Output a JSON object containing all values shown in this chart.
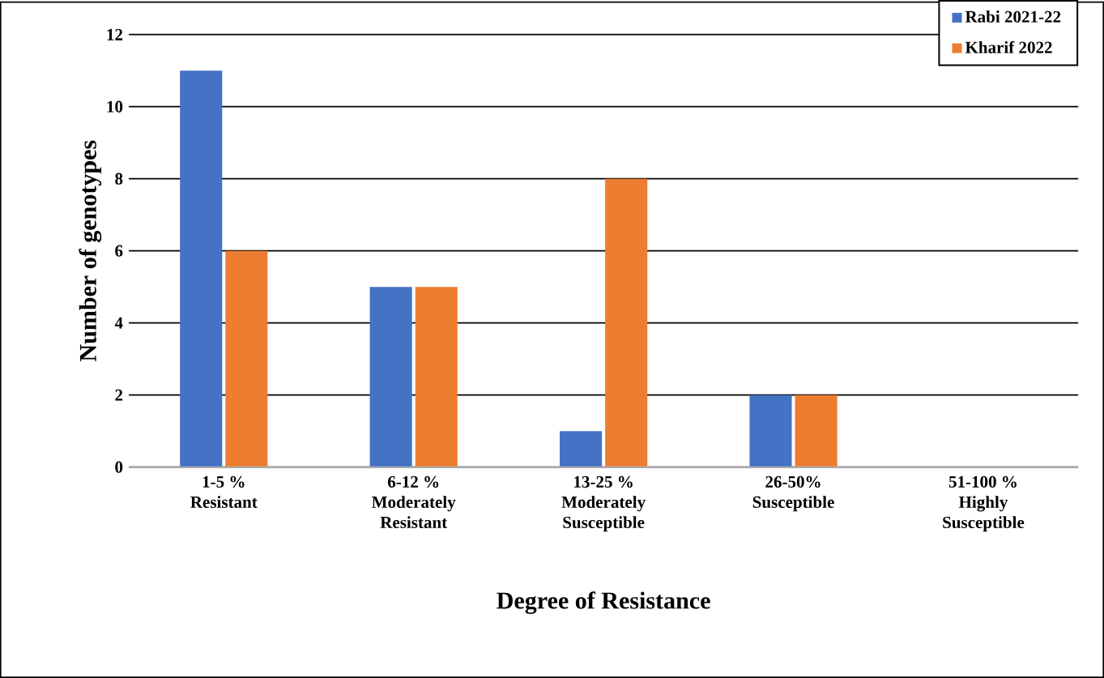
{
  "chart_data": {
    "type": "bar",
    "xlabel": "Degree of Resistance",
    "ylabel": "Number of genotypes",
    "categories": [
      "1-5 %\nResistant",
      "6-12 %\nModerately\nResistant",
      "13-25 %\nModerately\nSusceptible",
      "26-50%\nSusceptible",
      "51-100 %\nHighly\nSusceptible"
    ],
    "series": [
      {
        "name": "Rabi 2021-22",
        "color": "#4472c4",
        "values": [
          11,
          5,
          1,
          2,
          0
        ]
      },
      {
        "name": "Kharif 2022",
        "color": "#ed7d31",
        "values": [
          6,
          5,
          8,
          2,
          0
        ]
      }
    ],
    "ylim": [
      0,
      12
    ],
    "yticks": [
      0,
      2,
      4,
      6,
      8,
      10,
      12
    ],
    "grid": "y",
    "legend": "top right"
  }
}
